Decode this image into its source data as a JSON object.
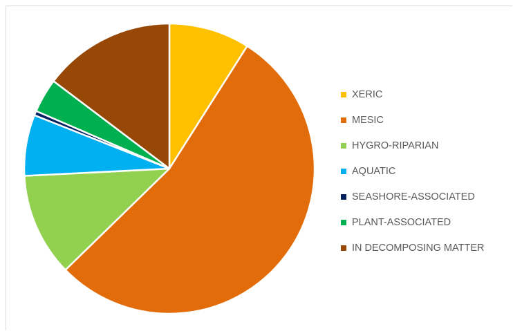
{
  "chart_data": {
    "type": "pie",
    "title": "",
    "categories": [
      "XERIC",
      "MESIC",
      "HYGRO-RIPARIAN",
      "AQUATIC",
      "SEASHORE-ASSOCIATED",
      "PLANT-ASSOCIATED",
      "IN DECOMPOSING MATTER"
    ],
    "values": [
      9.0,
      53.7,
      11.5,
      6.8,
      0.5,
      3.8,
      14.7
    ],
    "colors": [
      "#FFC000",
      "#E36C0A",
      "#92D050",
      "#00B0F0",
      "#002060",
      "#00B050",
      "#974706"
    ],
    "legend_position": "right",
    "start_angle": "12 o'clock, clockwise"
  }
}
